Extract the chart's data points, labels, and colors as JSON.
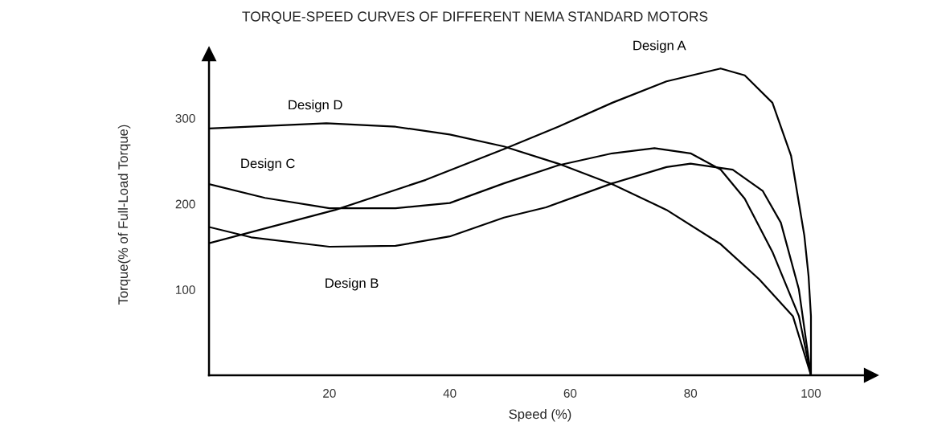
{
  "chart_data": {
    "type": "line",
    "title": "TORQUE-SPEED CURVES OF DIFFERENT NEMA STANDARD MOTORS",
    "xlabel": "Speed (%)",
    "ylabel": "Torque(% of Full-Load Torque)",
    "xlim": [
      0,
      110
    ],
    "ylim": [
      0,
      375
    ],
    "xticks": [
      20,
      40,
      60,
      80,
      100
    ],
    "yticks": [
      100,
      200,
      300
    ],
    "grid": false,
    "legend": false,
    "marker": "none",
    "line_style": "solid",
    "series": [
      {
        "name": "Design A",
        "color": "#000000",
        "x": [
          0,
          21,
          36,
          49,
          58,
          67,
          76,
          85,
          89,
          93.6,
          96.7,
          98.9,
          99.6,
          100,
          100
        ],
        "values": [
          154,
          193,
          228,
          264,
          290,
          318,
          343,
          358,
          350,
          318,
          256,
          163,
          116,
          69,
          0
        ]
      },
      {
        "name": "Design B",
        "color": "#000000",
        "x": [
          0,
          7,
          20,
          31,
          40,
          49,
          56,
          67,
          76,
          80,
          87,
          92,
          95,
          98,
          100
        ],
        "values": [
          173,
          161,
          150,
          151,
          162,
          184,
          196,
          224,
          243,
          247,
          240,
          215,
          178,
          100,
          0
        ]
      },
      {
        "name": "Design C",
        "color": "#000000",
        "x": [
          0,
          9.3,
          20,
          31,
          40,
          49,
          58,
          67,
          74,
          80,
          85,
          89,
          93.6,
          98,
          100
        ],
        "values": [
          223,
          207,
          195,
          195,
          201,
          224,
          245,
          259,
          265,
          259,
          240,
          206,
          144,
          69,
          0
        ]
      },
      {
        "name": "Design D",
        "color": "#000000",
        "x": [
          0,
          19.5,
          31,
          40,
          49,
          58,
          67,
          76,
          85,
          91.4,
          97,
          100
        ],
        "values": [
          288,
          294,
          290,
          281,
          267,
          247,
          223,
          193,
          153,
          112,
          69,
          0
        ]
      }
    ]
  }
}
